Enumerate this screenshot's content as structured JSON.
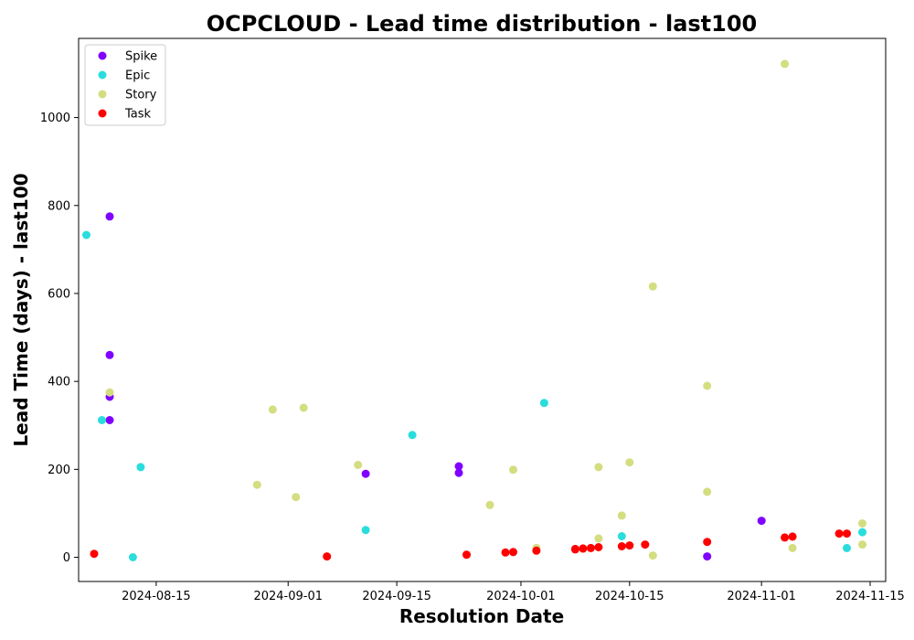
{
  "chart_data": {
    "type": "scatter",
    "title": "OCPCLOUD - Lead time distribution - last100",
    "xlabel": "Resolution Date",
    "ylabel": "Lead Time (days) - last100",
    "x_type": "date",
    "xlim": [
      "2024-08-05",
      "2024-11-17"
    ],
    "ylim": [
      -55,
      1180
    ],
    "x_ticks": [
      "2024-08-15",
      "2024-09-01",
      "2024-09-15",
      "2024-10-01",
      "2024-10-15",
      "2024-11-01",
      "2024-11-15"
    ],
    "y_ticks": [
      0,
      200,
      400,
      600,
      800,
      1000
    ],
    "grid": false,
    "legend_position": "top-left",
    "series": [
      {
        "name": "Spike",
        "color": "#8000ff",
        "points": [
          {
            "x": "2024-08-09",
            "y": 775
          },
          {
            "x": "2024-08-09",
            "y": 460
          },
          {
            "x": "2024-08-09",
            "y": 365
          },
          {
            "x": "2024-08-09",
            "y": 312
          },
          {
            "x": "2024-09-11",
            "y": 190
          },
          {
            "x": "2024-09-23",
            "y": 207
          },
          {
            "x": "2024-09-23",
            "y": 192
          },
          {
            "x": "2024-10-25",
            "y": 2
          },
          {
            "x": "2024-11-01",
            "y": 83
          }
        ]
      },
      {
        "name": "Epic",
        "color": "#2adddd",
        "points": [
          {
            "x": "2024-08-06",
            "y": 733
          },
          {
            "x": "2024-08-08",
            "y": 312
          },
          {
            "x": "2024-08-12",
            "y": 0
          },
          {
            "x": "2024-08-13",
            "y": 205
          },
          {
            "x": "2024-09-11",
            "y": 62
          },
          {
            "x": "2024-09-17",
            "y": 278
          },
          {
            "x": "2024-10-04",
            "y": 351
          },
          {
            "x": "2024-10-14",
            "y": 48
          },
          {
            "x": "2024-11-12",
            "y": 21
          },
          {
            "x": "2024-11-14",
            "y": 57
          }
        ]
      },
      {
        "name": "Story",
        "color": "#d4dd80",
        "points": [
          {
            "x": "2024-08-09",
            "y": 375
          },
          {
            "x": "2024-08-28",
            "y": 165
          },
          {
            "x": "2024-08-30",
            "y": 336
          },
          {
            "x": "2024-09-02",
            "y": 137
          },
          {
            "x": "2024-09-03",
            "y": 340
          },
          {
            "x": "2024-09-10",
            "y": 210
          },
          {
            "x": "2024-09-27",
            "y": 119
          },
          {
            "x": "2024-09-30",
            "y": 199
          },
          {
            "x": "2024-10-03",
            "y": 21
          },
          {
            "x": "2024-10-09",
            "y": 19
          },
          {
            "x": "2024-10-11",
            "y": 43
          },
          {
            "x": "2024-10-11",
            "y": 205
          },
          {
            "x": "2024-10-14",
            "y": 95
          },
          {
            "x": "2024-10-15",
            "y": 216
          },
          {
            "x": "2024-10-18",
            "y": 616
          },
          {
            "x": "2024-10-18",
            "y": 4
          },
          {
            "x": "2024-10-25",
            "y": 390
          },
          {
            "x": "2024-10-25",
            "y": 149
          },
          {
            "x": "2024-11-04",
            "y": 1122
          },
          {
            "x": "2024-11-05",
            "y": 21
          },
          {
            "x": "2024-11-14",
            "y": 77
          },
          {
            "x": "2024-11-14",
            "y": 29
          }
        ]
      },
      {
        "name": "Task",
        "color": "#ff0000",
        "points": [
          {
            "x": "2024-08-07",
            "y": 8
          },
          {
            "x": "2024-09-06",
            "y": 2
          },
          {
            "x": "2024-09-24",
            "y": 6
          },
          {
            "x": "2024-09-29",
            "y": 11
          },
          {
            "x": "2024-09-30",
            "y": 12
          },
          {
            "x": "2024-10-03",
            "y": 15
          },
          {
            "x": "2024-10-08",
            "y": 18
          },
          {
            "x": "2024-10-08",
            "y": 19
          },
          {
            "x": "2024-10-09",
            "y": 20
          },
          {
            "x": "2024-10-10",
            "y": 21
          },
          {
            "x": "2024-10-11",
            "y": 23
          },
          {
            "x": "2024-10-14",
            "y": 25
          },
          {
            "x": "2024-10-15",
            "y": 27
          },
          {
            "x": "2024-10-17",
            "y": 29
          },
          {
            "x": "2024-10-25",
            "y": 35
          },
          {
            "x": "2024-11-04",
            "y": 45
          },
          {
            "x": "2024-11-05",
            "y": 47
          },
          {
            "x": "2024-11-11",
            "y": 54
          },
          {
            "x": "2024-11-12",
            "y": 54
          }
        ]
      }
    ]
  }
}
